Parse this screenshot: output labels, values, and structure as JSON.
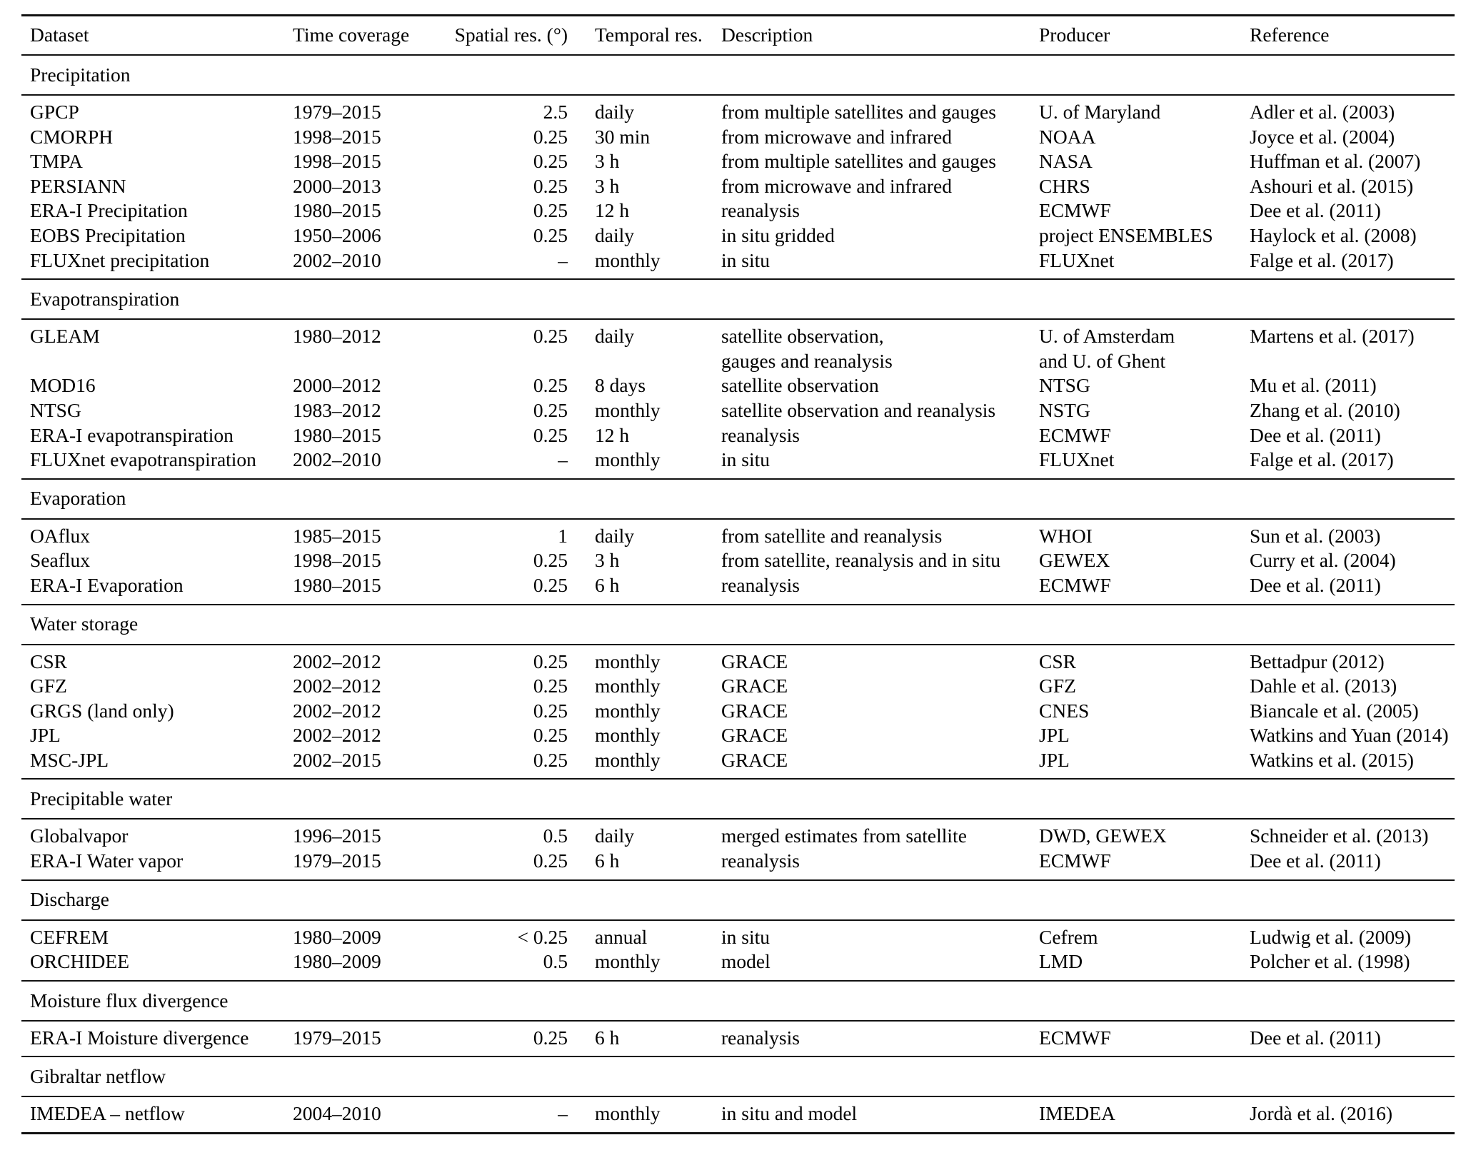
{
  "table": {
    "columns": [
      "Dataset",
      "Time coverage",
      "Spatial res. (°)",
      "Temporal res.",
      "Description",
      "Producer",
      "Reference"
    ],
    "sections": [
      {
        "label": "Precipitation",
        "rows": [
          {
            "dataset": "GPCP",
            "time_coverage": "1979–2015",
            "spatial_res": "2.5",
            "temporal_res": "daily",
            "description": [
              "from multiple satellites and gauges"
            ],
            "producer": [
              "U. of Maryland"
            ],
            "reference": "Adler et al. (2003)"
          },
          {
            "dataset": "CMORPH",
            "time_coverage": "1998–2015",
            "spatial_res": "0.25",
            "temporal_res": "30 min",
            "description": [
              "from microwave and infrared"
            ],
            "producer": [
              "NOAA"
            ],
            "reference": "Joyce et al. (2004)"
          },
          {
            "dataset": "TMPA",
            "time_coverage": "1998–2015",
            "spatial_res": "0.25",
            "temporal_res": "3 h",
            "description": [
              "from multiple satellites and gauges"
            ],
            "producer": [
              "NASA"
            ],
            "reference": "Huffman et al. (2007)"
          },
          {
            "dataset": "PERSIANN",
            "time_coverage": "2000–2013",
            "spatial_res": "0.25",
            "temporal_res": "3 h",
            "description": [
              "from microwave and infrared"
            ],
            "producer": [
              "CHRS"
            ],
            "reference": "Ashouri et al. (2015)"
          },
          {
            "dataset": "ERA-I Precipitation",
            "time_coverage": "1980–2015",
            "spatial_res": "0.25",
            "temporal_res": "12 h",
            "description": [
              "reanalysis"
            ],
            "producer": [
              "ECMWF"
            ],
            "reference": "Dee et al. (2011)"
          },
          {
            "dataset": "EOBS Precipitation",
            "time_coverage": "1950–2006",
            "spatial_res": "0.25",
            "temporal_res": "daily",
            "description": [
              "in situ gridded"
            ],
            "producer": [
              "project ENSEMBLES"
            ],
            "reference": "Haylock et al. (2008)"
          },
          {
            "dataset": "FLUXnet precipitation",
            "time_coverage": "2002–2010",
            "spatial_res": "–",
            "temporal_res": "monthly",
            "description": [
              "in situ"
            ],
            "producer": [
              "FLUXnet"
            ],
            "reference": "Falge et al. (2017)"
          }
        ]
      },
      {
        "label": "Evapotranspiration",
        "rows": [
          {
            "dataset": "GLEAM",
            "time_coverage": "1980–2012",
            "spatial_res": "0.25",
            "temporal_res": "daily",
            "description": [
              "satellite observation,",
              "gauges and reanalysis"
            ],
            "producer": [
              "U. of Amsterdam",
              "and U. of Ghent"
            ],
            "reference": "Martens et al. (2017)"
          },
          {
            "dataset": "MOD16",
            "time_coverage": "2000–2012",
            "spatial_res": "0.25",
            "temporal_res": "8 days",
            "description": [
              "satellite observation"
            ],
            "producer": [
              "NTSG"
            ],
            "reference": "Mu et al. (2011)"
          },
          {
            "dataset": "NTSG",
            "time_coverage": "1983–2012",
            "spatial_res": "0.25",
            "temporal_res": "monthly",
            "description": [
              "satellite observation and reanalysis"
            ],
            "producer": [
              "NSTG"
            ],
            "reference": "Zhang et al. (2010)"
          },
          {
            "dataset": "ERA-I evapotranspiration",
            "time_coverage": "1980–2015",
            "spatial_res": "0.25",
            "temporal_res": "12 h",
            "description": [
              "reanalysis"
            ],
            "producer": [
              "ECMWF"
            ],
            "reference": "Dee et al. (2011)"
          },
          {
            "dataset": "FLUXnet evapotranspiration",
            "time_coverage": "2002–2010",
            "spatial_res": "–",
            "temporal_res": "monthly",
            "description": [
              "in situ"
            ],
            "producer": [
              "FLUXnet"
            ],
            "reference": "Falge et al. (2017)"
          }
        ]
      },
      {
        "label": "Evaporation",
        "rows": [
          {
            "dataset": "OAflux",
            "time_coverage": "1985–2015",
            "spatial_res": "1",
            "temporal_res": "daily",
            "description": [
              "from satellite and reanalysis"
            ],
            "producer": [
              "WHOI"
            ],
            "reference": "Sun et al. (2003)"
          },
          {
            "dataset": "Seaflux",
            "time_coverage": "1998–2015",
            "spatial_res": "0.25",
            "temporal_res": "3 h",
            "description": [
              "from satellite, reanalysis and in situ"
            ],
            "producer": [
              "GEWEX"
            ],
            "reference": "Curry et al. (2004)"
          },
          {
            "dataset": "ERA-I Evaporation",
            "time_coverage": "1980–2015",
            "spatial_res": "0.25",
            "temporal_res": "6 h",
            "description": [
              "reanalysis"
            ],
            "producer": [
              "ECMWF"
            ],
            "reference": "Dee et al. (2011)"
          }
        ]
      },
      {
        "label": "Water storage",
        "rows": [
          {
            "dataset": "CSR",
            "time_coverage": "2002–2012",
            "spatial_res": "0.25",
            "temporal_res": "monthly",
            "description": [
              "GRACE"
            ],
            "producer": [
              "CSR"
            ],
            "reference": "Bettadpur (2012)"
          },
          {
            "dataset": "GFZ",
            "time_coverage": "2002–2012",
            "spatial_res": "0.25",
            "temporal_res": "monthly",
            "description": [
              "GRACE"
            ],
            "producer": [
              "GFZ"
            ],
            "reference": "Dahle et al. (2013)"
          },
          {
            "dataset": "GRGS (land only)",
            "time_coverage": "2002–2012",
            "spatial_res": "0.25",
            "temporal_res": "monthly",
            "description": [
              "GRACE"
            ],
            "producer": [
              "CNES"
            ],
            "reference": "Biancale et al. (2005)"
          },
          {
            "dataset": "JPL",
            "time_coverage": "2002–2012",
            "spatial_res": "0.25",
            "temporal_res": "monthly",
            "description": [
              "GRACE"
            ],
            "producer": [
              "JPL"
            ],
            "reference": "Watkins and Yuan (2014)"
          },
          {
            "dataset": "MSC-JPL",
            "time_coverage": "2002–2015",
            "spatial_res": "0.25",
            "temporal_res": "monthly",
            "description": [
              "GRACE"
            ],
            "producer": [
              "JPL"
            ],
            "reference": "Watkins et al. (2015)"
          }
        ]
      },
      {
        "label": "Precipitable water",
        "rows": [
          {
            "dataset": "Globalvapor",
            "time_coverage": "1996–2015",
            "spatial_res": "0.5",
            "temporal_res": "daily",
            "description": [
              "merged estimates from satellite"
            ],
            "producer": [
              "DWD, GEWEX"
            ],
            "reference": "Schneider et al. (2013)"
          },
          {
            "dataset": "ERA-I Water vapor",
            "time_coverage": "1979–2015",
            "spatial_res": "0.25",
            "temporal_res": "6 h",
            "description": [
              "reanalysis"
            ],
            "producer": [
              "ECMWF"
            ],
            "reference": "Dee et al. (2011)"
          }
        ]
      },
      {
        "label": "Discharge",
        "rows": [
          {
            "dataset": "CEFREM",
            "time_coverage": "1980–2009",
            "spatial_res": "< 0.25",
            "temporal_res": "annual",
            "description": [
              "in situ"
            ],
            "producer": [
              "Cefrem"
            ],
            "reference": "Ludwig et al. (2009)"
          },
          {
            "dataset": "ORCHIDEE",
            "time_coverage": "1980–2009",
            "spatial_res": "0.5",
            "temporal_res": "monthly",
            "description": [
              "model"
            ],
            "producer": [
              "LMD"
            ],
            "reference": "Polcher et al. (1998)"
          }
        ]
      },
      {
        "label": "Moisture flux divergence",
        "rows": [
          {
            "dataset": "ERA-I Moisture divergence",
            "time_coverage": "1979–2015",
            "spatial_res": "0.25",
            "temporal_res": "6 h",
            "description": [
              "reanalysis"
            ],
            "producer": [
              "ECMWF"
            ],
            "reference": "Dee et al. (2011)"
          }
        ]
      },
      {
        "label": "Gibraltar netflow",
        "rows": [
          {
            "dataset": "IMEDEA – netflow",
            "time_coverage": "2004–2010",
            "spatial_res": "–",
            "temporal_res": "monthly",
            "description": [
              "in situ and model"
            ],
            "producer": [
              "IMEDEA"
            ],
            "reference": "Jordà et al. (2016)"
          }
        ]
      }
    ]
  }
}
